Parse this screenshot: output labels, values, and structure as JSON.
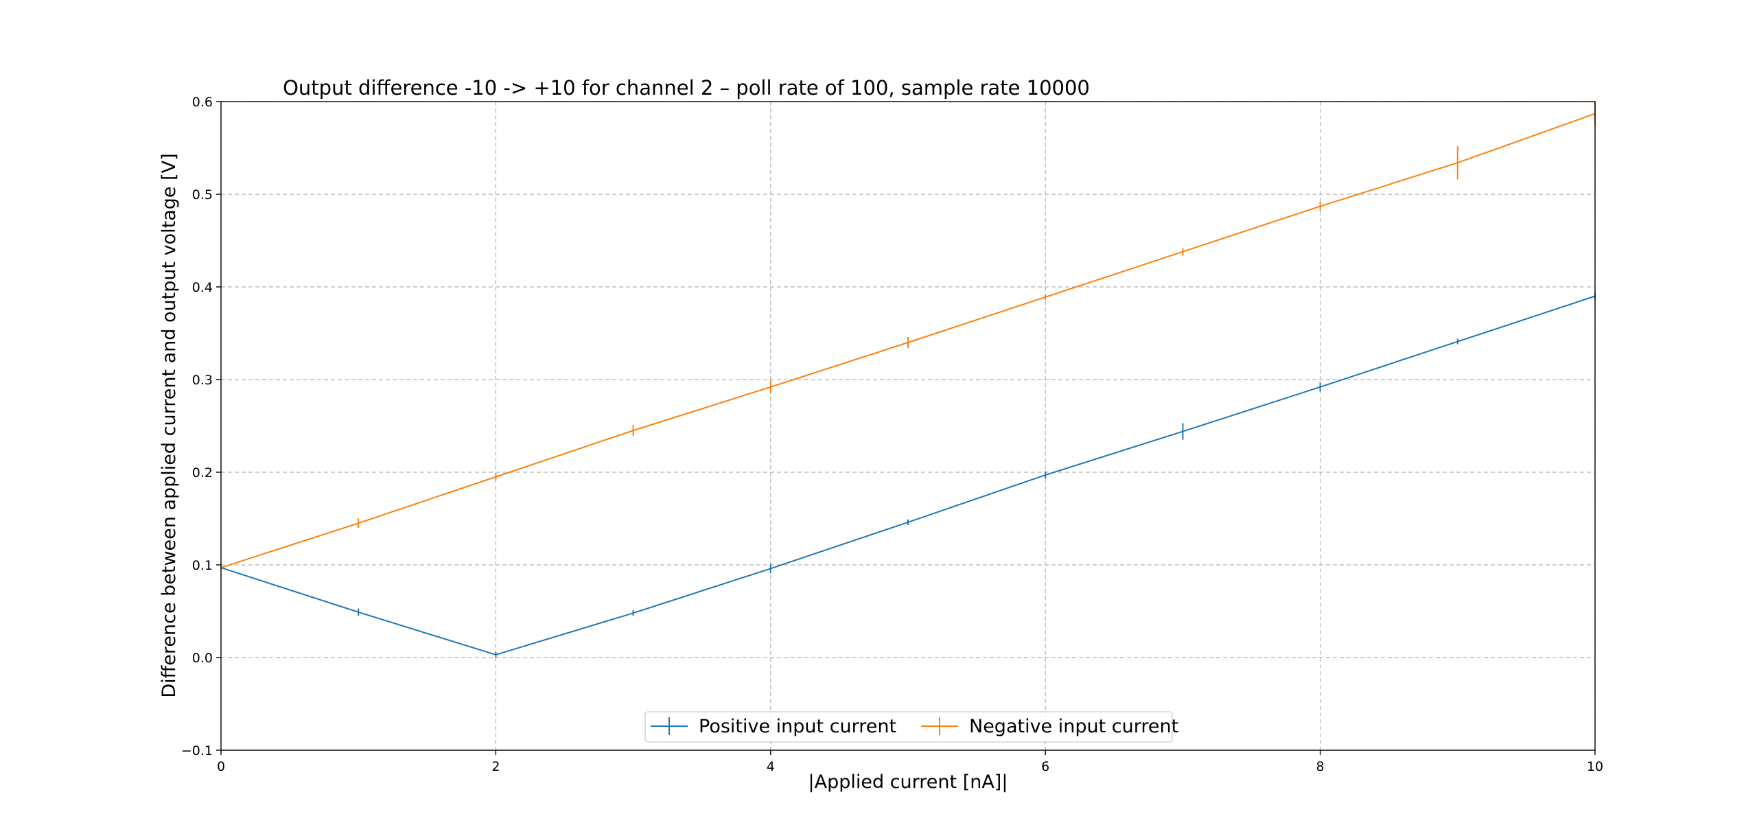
{
  "chart_data": {
    "type": "line",
    "title": "Output difference -10 -> +10 for channel 2 – poll rate of 100, sample rate 10000",
    "xlabel": "|Applied current [nA]|",
    "ylabel": "Difference between applied current and output voltage [V]",
    "xlim": [
      0,
      10
    ],
    "ylim": [
      -0.1,
      0.6
    ],
    "xticks": [
      0,
      2,
      4,
      6,
      8,
      10
    ],
    "yticks": [
      -0.1,
      0.0,
      0.1,
      0.2,
      0.3,
      0.4,
      0.5,
      0.6
    ],
    "xtick_labels": [
      "0",
      "2",
      "4",
      "6",
      "8",
      "10"
    ],
    "ytick_labels": [
      "−0.1",
      "0.0",
      "0.1",
      "0.2",
      "0.3",
      "0.4",
      "0.5",
      "0.6"
    ],
    "grid": true,
    "legend_position": "bottom-center",
    "x": [
      0,
      1,
      2,
      3,
      4,
      5,
      6,
      7,
      8,
      9,
      10
    ],
    "series": [
      {
        "name": "Positive input current",
        "color": "#1f77b4",
        "values": [
          0.097,
          0.049,
          0.003,
          0.048,
          0.096,
          0.146,
          0.197,
          0.244,
          0.292,
          0.341,
          0.39
        ],
        "errors": [
          0.002,
          0.004,
          0.003,
          0.003,
          0.005,
          0.003,
          0.004,
          0.009,
          0.005,
          0.003,
          0.004
        ]
      },
      {
        "name": "Negative input current",
        "color": "#ff7f0e",
        "values": [
          0.097,
          0.145,
          0.195,
          0.245,
          0.292,
          0.34,
          0.389,
          0.438,
          0.487,
          0.534,
          0.587
        ],
        "errors": [
          0.002,
          0.005,
          0.004,
          0.006,
          0.007,
          0.006,
          0.003,
          0.004,
          0.005,
          0.018,
          0.013
        ]
      }
    ]
  }
}
